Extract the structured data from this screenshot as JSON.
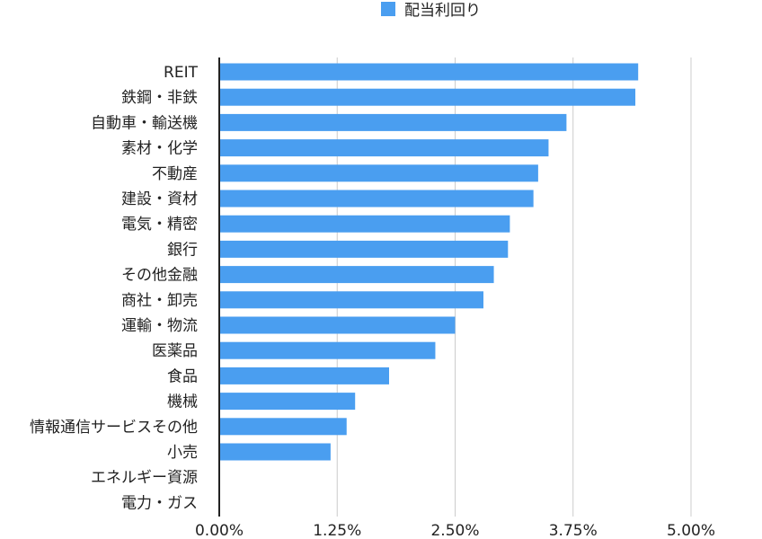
{
  "chart_data": {
    "type": "bar",
    "orientation": "horizontal",
    "legend": {
      "position": "top",
      "entries": [
        "配当利回り"
      ]
    },
    "categories": [
      "REIT",
      "鉄鋼・非鉄",
      "自動車・輸送機",
      "素材・化学",
      "不動産",
      "建設・資材",
      "電気・精密",
      "銀行",
      "その他金融",
      "商社・卸売",
      "運輸・物流",
      "医薬品",
      "食品",
      "機械",
      "情報通信サービスその他",
      "小売",
      "エネルギー資源",
      "電力・ガス"
    ],
    "series": [
      {
        "name": "配当利回り",
        "color": "#4a9ef0",
        "values": [
          4.44,
          4.41,
          3.68,
          3.49,
          3.38,
          3.33,
          3.08,
          3.06,
          2.91,
          2.8,
          2.5,
          2.29,
          1.8,
          1.44,
          1.35,
          1.18,
          0,
          0
        ]
      }
    ],
    "xlim": [
      0,
      5
    ],
    "x_ticks": [
      0,
      1.25,
      2.5,
      3.75,
      5
    ],
    "x_tick_labels": [
      "0.00%",
      "1.25%",
      "2.50%",
      "3.75%",
      "5.00%"
    ],
    "grid": "vertical"
  }
}
